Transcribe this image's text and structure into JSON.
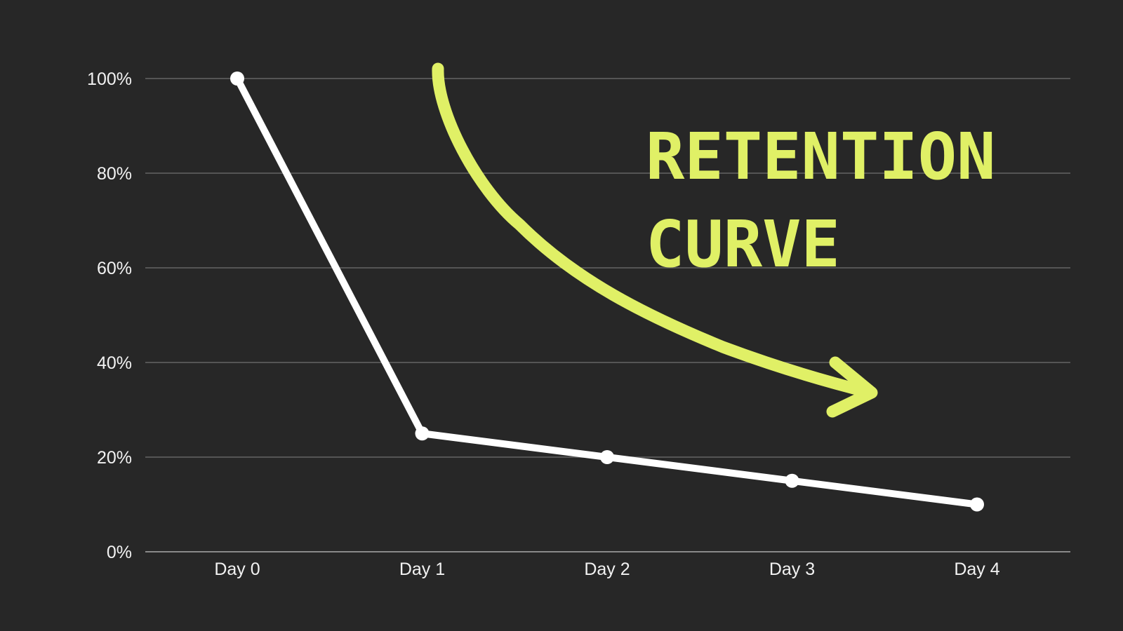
{
  "chart_data": {
    "type": "line",
    "title_lines": [
      "RETENTION",
      "CURVE"
    ],
    "categories": [
      "Day 0",
      "Day 1",
      "Day 2",
      "Day 3",
      "Day 4"
    ],
    "series": [
      {
        "values": [
          100,
          25,
          20,
          15,
          10
        ]
      }
    ],
    "y_ticks": [
      "0%",
      "20%",
      "40%",
      "60%",
      "80%",
      "100%"
    ],
    "ylim": [
      0,
      100
    ],
    "xlabel": "",
    "ylabel": "",
    "grid": true,
    "annotation": {
      "type": "curved-arrow",
      "color": "#e0f066"
    },
    "colors": {
      "background": "#272727",
      "line": "#ffffff",
      "grid": "#555555",
      "axis": "#8a8a8a",
      "title": "#e0f066"
    }
  }
}
